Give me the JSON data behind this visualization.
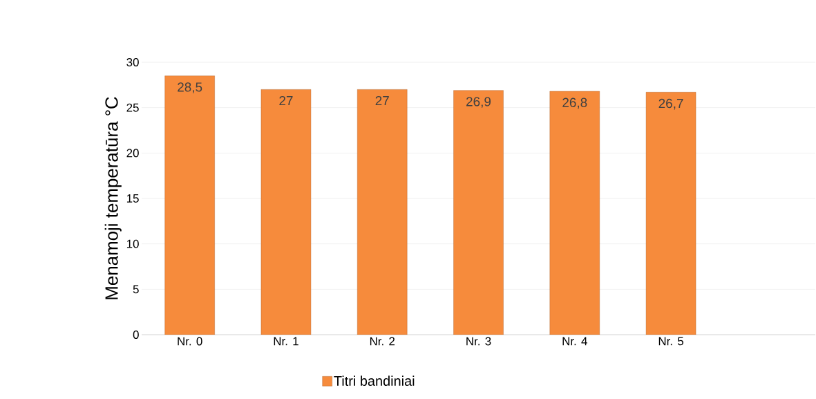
{
  "chart_data": {
    "type": "bar",
    "ylabel": "Menamoji temperatūra °C",
    "categories": [
      "Nr. 0",
      "Nr. 1",
      "Nr. 2",
      "Nr.  3",
      "Nr. 4",
      "Nr. 5",
      null
    ],
    "series": [
      {
        "name": "Titri bandiniai",
        "color": "#f68b3c",
        "values": [
          28.5,
          27,
          27,
          26.9,
          26.8,
          26.7,
          null
        ],
        "value_labels": [
          "28,5",
          "27",
          "27",
          "26,9",
          "26,8",
          "26,7",
          null
        ]
      }
    ],
    "ylim": [
      0,
      30
    ],
    "yticks": [
      0,
      5,
      10,
      15,
      20,
      25,
      30
    ],
    "grid": "y",
    "legend": "bottom"
  }
}
